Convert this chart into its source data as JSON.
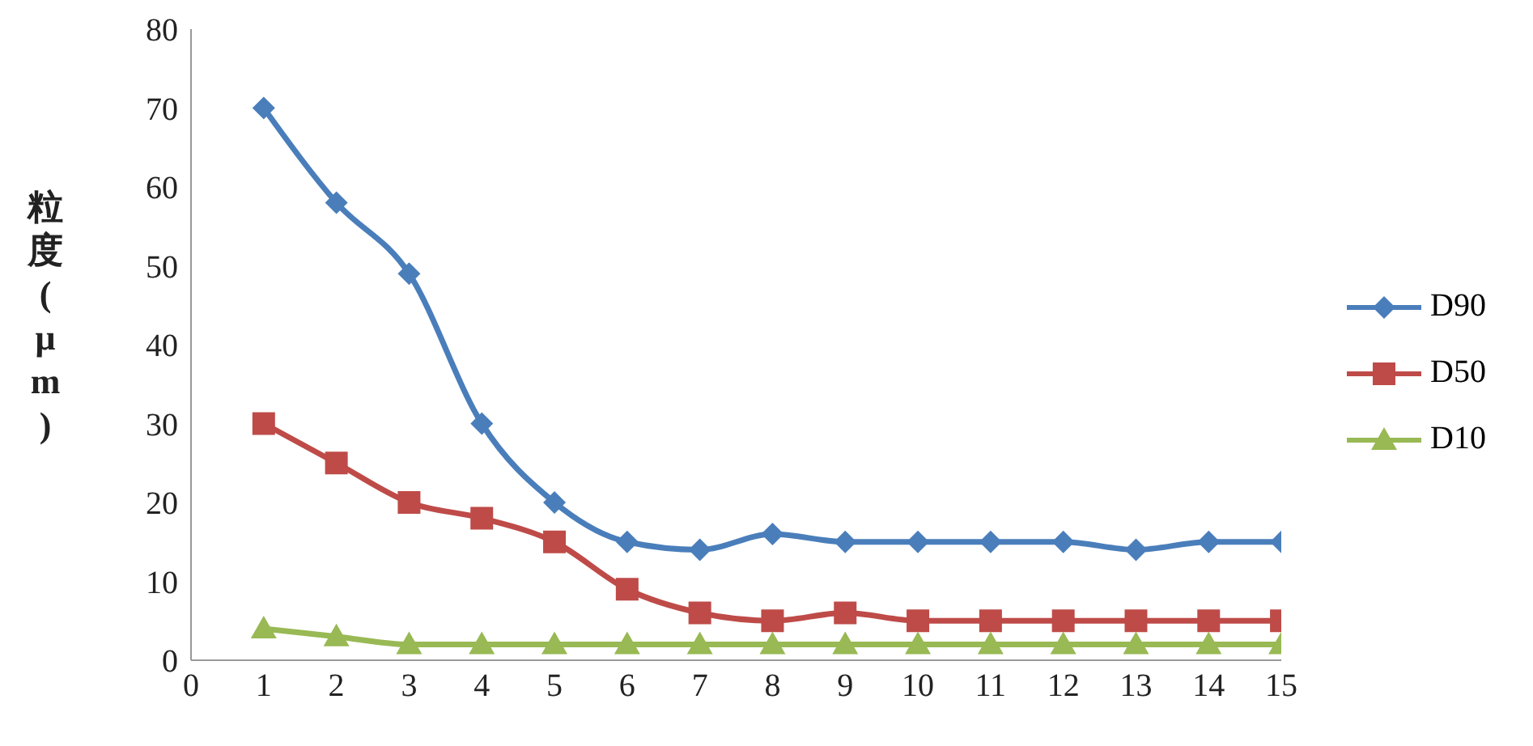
{
  "chart_data": {
    "type": "line",
    "ylabel": "粒度(μm)",
    "x": [
      1,
      2,
      3,
      4,
      5,
      6,
      7,
      8,
      9,
      10,
      11,
      12,
      13,
      14,
      15
    ],
    "xlim": [
      0,
      15
    ],
    "xticks": [
      0,
      1,
      2,
      3,
      4,
      5,
      6,
      7,
      8,
      9,
      10,
      11,
      12,
      13,
      14,
      15
    ],
    "ylim": [
      0,
      80
    ],
    "yticks": [
      0,
      10,
      20,
      30,
      40,
      50,
      60,
      70,
      80
    ],
    "grid": false,
    "legend": "right",
    "series": [
      {
        "name": "D90",
        "color": "#4a7ebb",
        "marker": "diamond",
        "values": [
          70,
          58,
          49,
          30,
          20,
          15,
          14,
          16,
          15,
          15,
          15,
          15,
          14,
          15,
          15
        ]
      },
      {
        "name": "D50",
        "color": "#be4b48",
        "marker": "square",
        "values": [
          30,
          25,
          20,
          18,
          15,
          9,
          6,
          5,
          6,
          5,
          5,
          5,
          5,
          5,
          5
        ]
      },
      {
        "name": "D10",
        "color": "#98b954",
        "marker": "triangle",
        "values": [
          4,
          3,
          2,
          2,
          2,
          2,
          2,
          2,
          2,
          2,
          2,
          2,
          2,
          2,
          2
        ]
      }
    ]
  }
}
